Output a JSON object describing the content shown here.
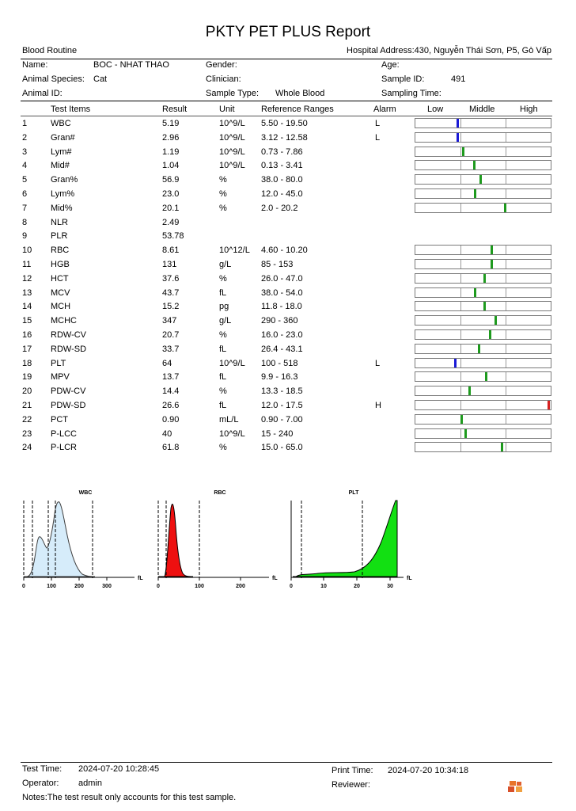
{
  "title": "PKTY PET PLUS Report",
  "header": {
    "section": "Blood Routine",
    "hospital_address": "Hospital Address:430, Nguyễn Thái Sơn, P5, Gò Vấp",
    "name_label": "Name:",
    "name_value": "BOC - NHAT THAO",
    "gender_label": "Gender:",
    "age_label": "Age:",
    "species_label": "Animal Species:",
    "species_value": "Cat",
    "clinician_label": "Clinician:",
    "sample_id_label": "Sample ID:",
    "sample_id_value": "491",
    "animal_id_label": "Animal ID:",
    "sample_type_label": "Sample Type:",
    "sample_type_value": "Whole Blood",
    "sampling_time_label": "Sampling Time:"
  },
  "columns": [
    "Test Items",
    "Result",
    "Unit",
    "Reference Ranges",
    "Alarm",
    "Low",
    "Middle",
    "High"
  ],
  "rows": [
    {
      "no": "1",
      "item": "WBC",
      "result": "5.19",
      "unit": "10^9/L",
      "ref": "5.50 - 19.50",
      "alarm": "L",
      "bar": true,
      "pos": 0.31,
      "color": "#1a1ad6"
    },
    {
      "no": "2",
      "item": "Gran#",
      "result": "2.96",
      "unit": "10^9/L",
      "ref": "3.12 - 12.58",
      "alarm": "L",
      "bar": true,
      "pos": 0.31,
      "color": "#1a1ad6"
    },
    {
      "no": "3",
      "item": "Lym#",
      "result": "1.19",
      "unit": "10^9/L",
      "ref": "0.73 - 7.86",
      "alarm": "",
      "bar": true,
      "pos": 0.35,
      "color": "#1e9a1e"
    },
    {
      "no": "4",
      "item": "Mid#",
      "result": "1.04",
      "unit": "10^9/L",
      "ref": "0.13 - 3.41",
      "alarm": "",
      "bar": true,
      "pos": 0.43,
      "color": "#1e9a1e"
    },
    {
      "no": "5",
      "item": "Gran%",
      "result": "56.9",
      "unit": "%",
      "ref": "38.0 - 80.0",
      "alarm": "",
      "bar": true,
      "pos": 0.48,
      "color": "#1e9a1e"
    },
    {
      "no": "6",
      "item": "Lym%",
      "result": "23.0",
      "unit": "%",
      "ref": "12.0 - 45.0",
      "alarm": "",
      "bar": true,
      "pos": 0.44,
      "color": "#1e9a1e"
    },
    {
      "no": "7",
      "item": "Mid%",
      "result": "20.1",
      "unit": "%",
      "ref": "2.0 - 20.2",
      "alarm": "",
      "bar": true,
      "pos": 0.66,
      "color": "#1e9a1e"
    },
    {
      "no": "8",
      "item": "NLR",
      "result": "2.49",
      "unit": "",
      "ref": "",
      "alarm": "",
      "bar": false
    },
    {
      "no": "9",
      "item": "PLR",
      "result": "53.78",
      "unit": "",
      "ref": "",
      "alarm": "",
      "bar": false
    },
    {
      "no": "10",
      "item": "RBC",
      "result": "8.61",
      "unit": "10^12/L",
      "ref": "4.60 - 10.20",
      "alarm": "",
      "bar": true,
      "pos": 0.56,
      "color": "#1e9a1e"
    },
    {
      "no": "11",
      "item": "HGB",
      "result": "131",
      "unit": "g/L",
      "ref": "85 - 153",
      "alarm": "",
      "bar": true,
      "pos": 0.56,
      "color": "#1e9a1e"
    },
    {
      "no": "12",
      "item": "HCT",
      "result": "37.6",
      "unit": "%",
      "ref": "26.0 - 47.0",
      "alarm": "",
      "bar": true,
      "pos": 0.51,
      "color": "#1e9a1e"
    },
    {
      "no": "13",
      "item": "MCV",
      "result": "43.7",
      "unit": "fL",
      "ref": "38.0 - 54.0",
      "alarm": "",
      "bar": true,
      "pos": 0.44,
      "color": "#1e9a1e"
    },
    {
      "no": "14",
      "item": "MCH",
      "result": "15.2",
      "unit": "pg",
      "ref": "11.8 - 18.0",
      "alarm": "",
      "bar": true,
      "pos": 0.51,
      "color": "#1e9a1e"
    },
    {
      "no": "15",
      "item": "MCHC",
      "result": "347",
      "unit": "g/L",
      "ref": "290 - 360",
      "alarm": "",
      "bar": true,
      "pos": 0.59,
      "color": "#1e9a1e"
    },
    {
      "no": "16",
      "item": "RDW-CV",
      "result": "20.7",
      "unit": "%",
      "ref": "16.0 - 23.0",
      "alarm": "",
      "bar": true,
      "pos": 0.55,
      "color": "#1e9a1e"
    },
    {
      "no": "17",
      "item": "RDW-SD",
      "result": "33.7",
      "unit": "fL",
      "ref": "26.4 - 43.1",
      "alarm": "",
      "bar": true,
      "pos": 0.47,
      "color": "#1e9a1e"
    },
    {
      "no": "18",
      "item": "PLT",
      "result": "64",
      "unit": "10^9/L",
      "ref": "100 - 518",
      "alarm": "L",
      "bar": true,
      "pos": 0.29,
      "color": "#1a1ad6"
    },
    {
      "no": "19",
      "item": "MPV",
      "result": "13.7",
      "unit": "fL",
      "ref": "9.9 - 16.3",
      "alarm": "",
      "bar": true,
      "pos": 0.52,
      "color": "#1e9a1e"
    },
    {
      "no": "20",
      "item": "PDW-CV",
      "result": "14.4",
      "unit": "%",
      "ref": "13.3 - 18.5",
      "alarm": "",
      "bar": true,
      "pos": 0.4,
      "color": "#1e9a1e"
    },
    {
      "no": "21",
      "item": "PDW-SD",
      "result": "26.6",
      "unit": "fL",
      "ref": "12.0 - 17.5",
      "alarm": "H",
      "bar": true,
      "pos": 0.985,
      "color": "#d62020"
    },
    {
      "no": "22",
      "item": "PCT",
      "result": "0.90",
      "unit": "mL/L",
      "ref": "0.90 - 7.00",
      "alarm": "",
      "bar": true,
      "pos": 0.34,
      "color": "#1e9a1e"
    },
    {
      "no": "23",
      "item": "P-LCC",
      "result": "40",
      "unit": "10^9/L",
      "ref": "15 - 240",
      "alarm": "",
      "bar": true,
      "pos": 0.37,
      "color": "#1e9a1e"
    },
    {
      "no": "24",
      "item": "P-LCR",
      "result": "61.8",
      "unit": "%",
      "ref": "15.0 - 65.0",
      "alarm": "",
      "bar": true,
      "pos": 0.64,
      "color": "#1e9a1e"
    }
  ],
  "charts": [
    {
      "title": "WBC",
      "unit": "fL",
      "ticks": [
        "0",
        "100",
        "200",
        "300"
      ],
      "fill": "#d6ecfa",
      "stroke": "#404040"
    },
    {
      "title": "RBC",
      "unit": "fL",
      "ticks": [
        "0",
        "100",
        "200"
      ],
      "fill": "#ee1010",
      "stroke": "#000000"
    },
    {
      "title": "PLT",
      "unit": "fL",
      "ticks": [
        "0",
        "10",
        "20",
        "30"
      ],
      "fill": "#12e012",
      "stroke": "#000000"
    }
  ],
  "footer": {
    "test_time_label": "Test Time:",
    "test_time_value": "2024-07-20 10:28:45",
    "print_time_label": "Print Time:",
    "print_time_value": "2024-07-20 10:34:18",
    "operator_label": "Operator:",
    "operator_value": "admin",
    "reviewer_label": "Reviewer:",
    "notes": "Notes:The test result only accounts for this test sample."
  }
}
